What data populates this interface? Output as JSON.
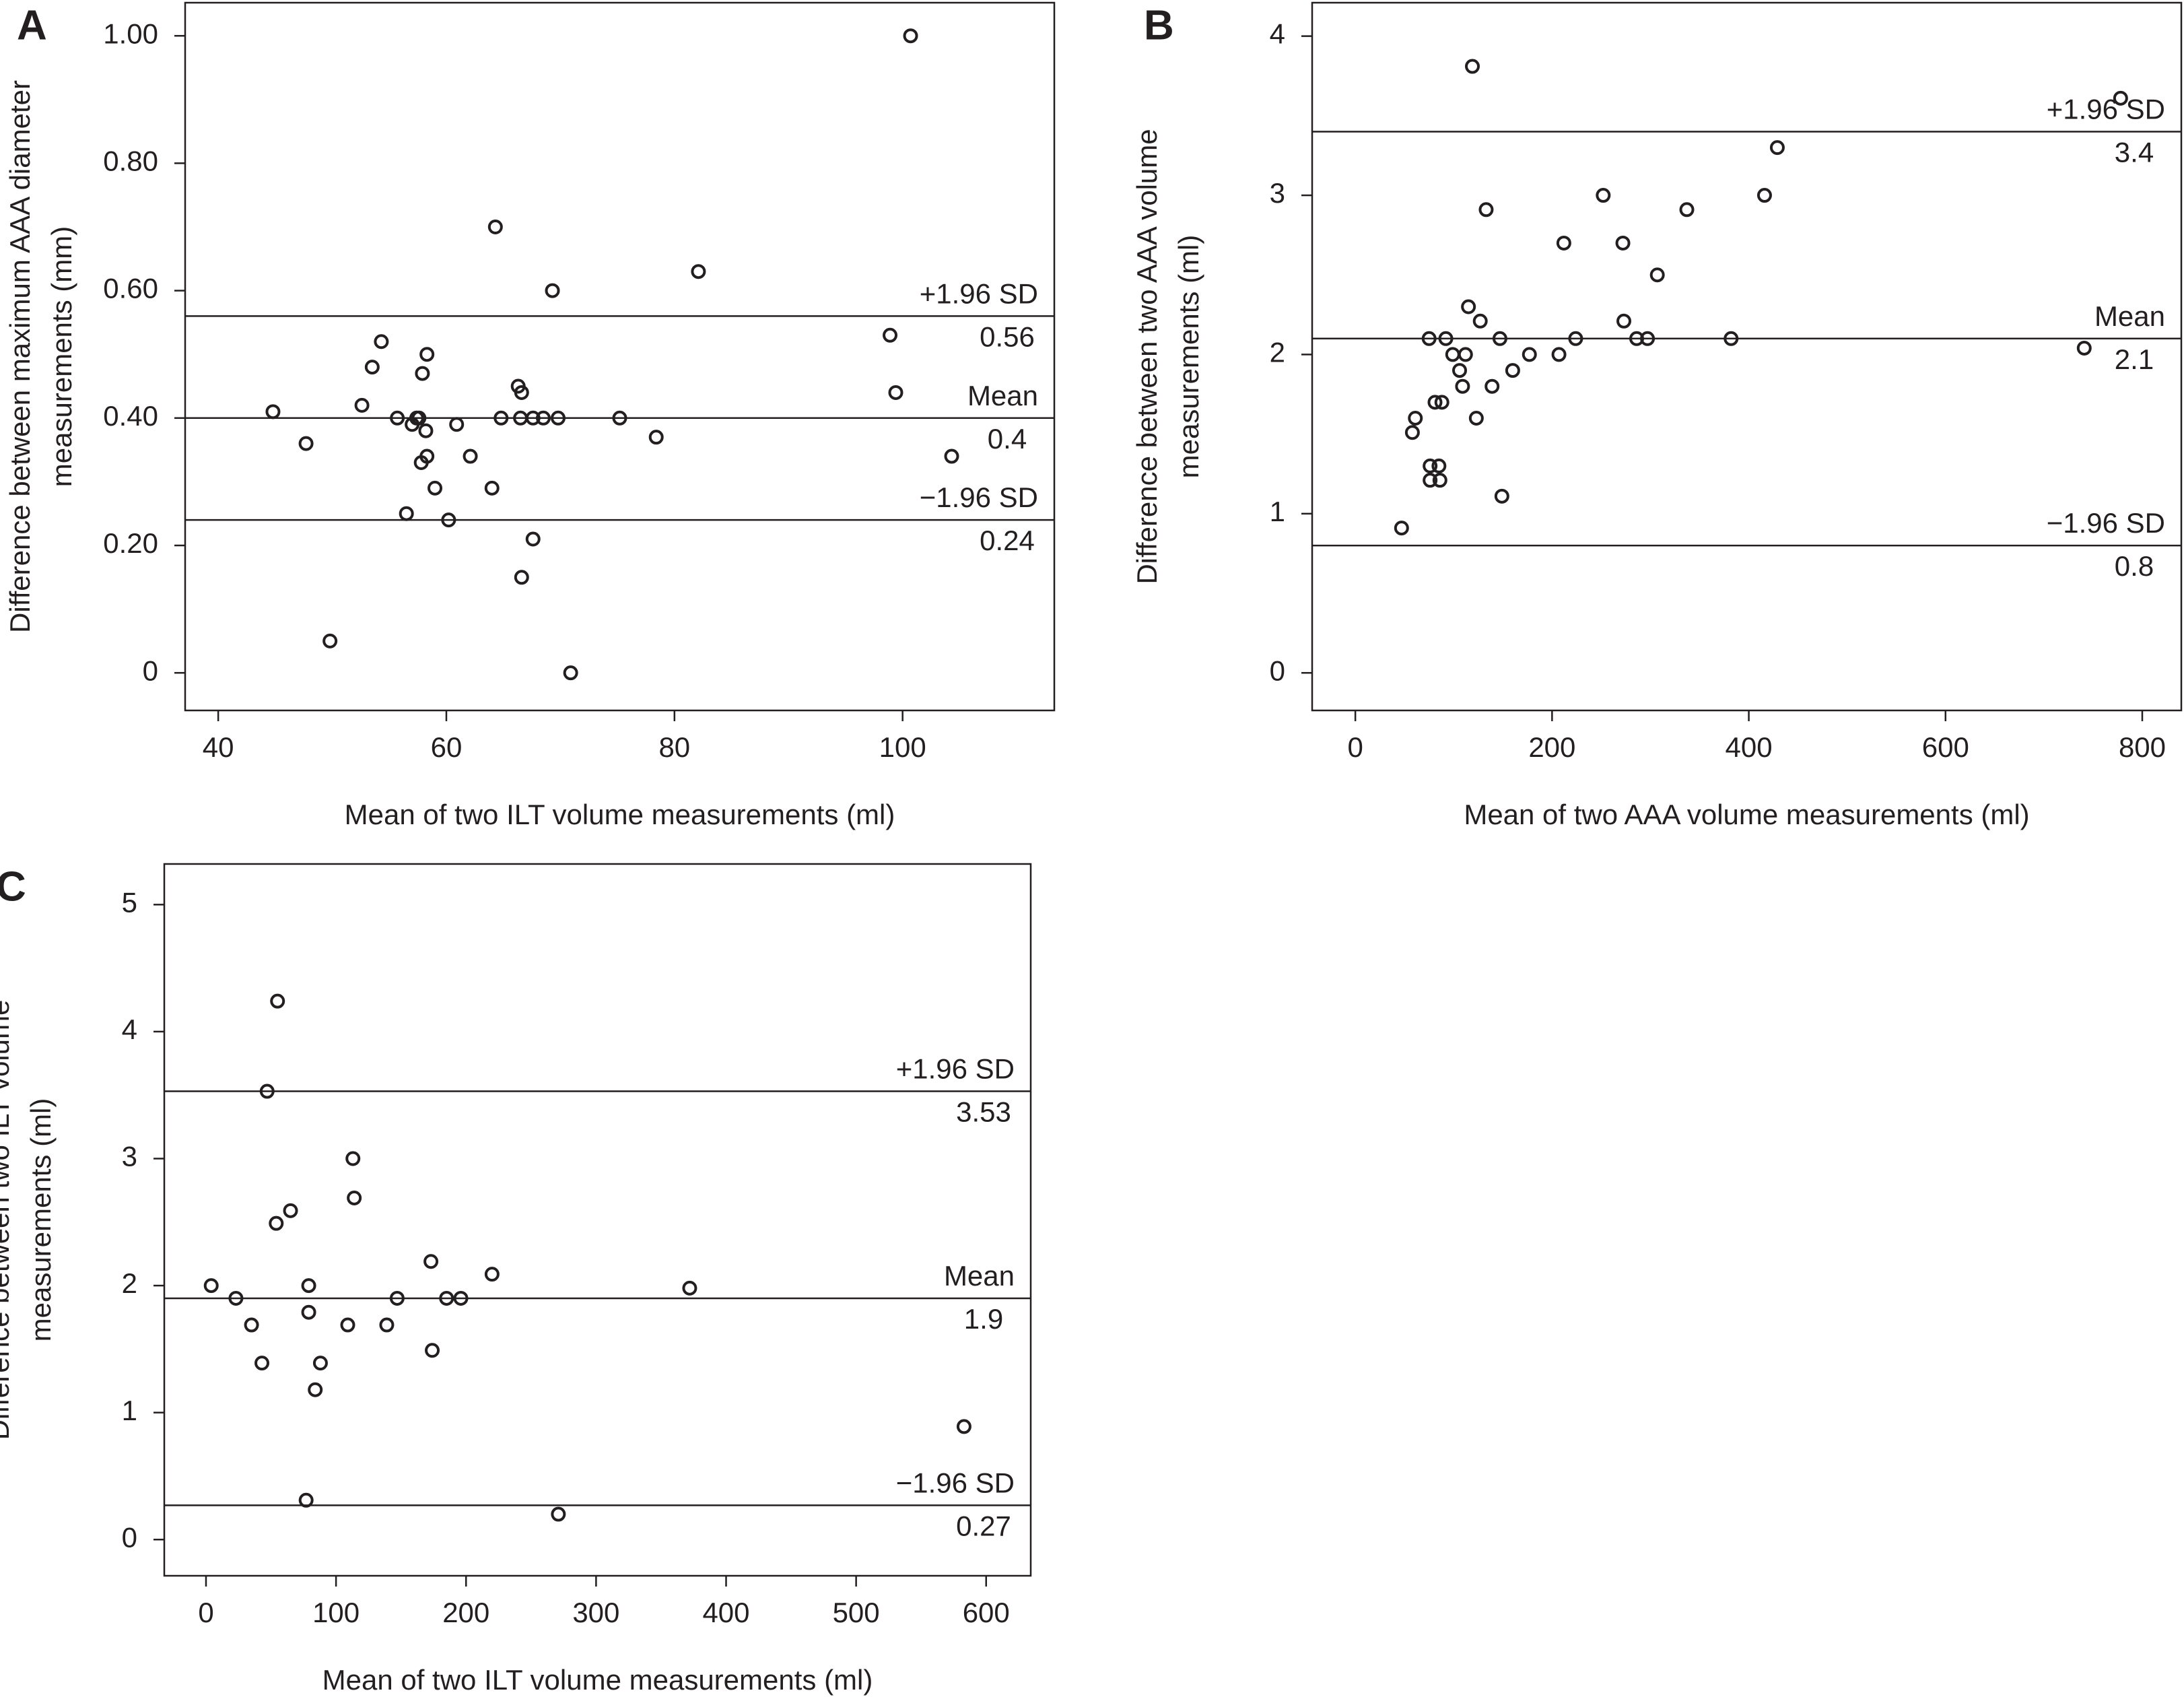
{
  "chart_data": [
    {
      "type": "scatter",
      "panel": "A",
      "xlabel": "Mean of two ILT volume measurements (ml)",
      "ylabel": [
        "Difference between maximum AAA diameter",
        "measurements (mm)"
      ],
      "color": "#231f20",
      "xlim": [
        37.1,
        113.3
      ],
      "ylim": [
        -0.059,
        1.052
      ],
      "xticks": [
        40,
        60,
        80,
        100
      ],
      "yticks": [
        0,
        {
          "value": 0.2,
          "label": "0.20"
        },
        {
          "value": 0.4,
          "label": "0.40"
        },
        {
          "value": 0.6,
          "label": "0.60"
        },
        {
          "value": 0.8,
          "label": "0.80"
        },
        {
          "value": 1.0,
          "label": "1.00"
        }
      ],
      "reference_lines": [
        {
          "name": "+1.96 SD",
          "value": 0.56
        },
        {
          "name": "Mean",
          "value": 0.4
        },
        {
          "name": "−1.96 SD",
          "value": 0.24
        }
      ],
      "x": [
        100.7,
        64.3,
        82.1,
        69.3,
        98.9,
        54.3,
        53.5,
        58.3,
        57.9,
        99.4,
        66.3,
        66.6,
        52.6,
        44.8,
        55.7,
        57.4,
        57.6,
        57.0,
        60.9,
        64.8,
        66.5,
        67.6,
        68.5,
        69.8,
        75.2,
        58.2,
        78.4,
        47.7,
        58.3,
        62.1,
        104.3,
        57.8,
        59.0,
        64.0,
        56.5,
        60.2,
        67.6,
        66.6,
        49.8,
        70.9
      ],
      "values": [
        1.0,
        0.7,
        0.63,
        0.6,
        0.53,
        0.52,
        0.48,
        0.5,
        0.47,
        0.44,
        0.45,
        0.44,
        0.42,
        0.41,
        0.4,
        0.4,
        0.4,
        0.39,
        0.39,
        0.4,
        0.4,
        0.4,
        0.4,
        0.4,
        0.4,
        0.38,
        0.37,
        0.36,
        0.34,
        0.34,
        0.34,
        0.33,
        0.29,
        0.29,
        0.25,
        0.24,
        0.21,
        0.15,
        0.05,
        0.0
      ]
    },
    {
      "type": "scatter",
      "panel": "B",
      "xlabel": "Mean of two AAA volume measurements (ml)",
      "ylabel": [
        "Difference between two AAA volume",
        "measurements (ml)"
      ],
      "color": "#231f20",
      "xlim": [
        -43.9,
        839.7
      ],
      "ylim": [
        -0.236,
        4.21
      ],
      "xticks": [
        0,
        200,
        400,
        600,
        800
      ],
      "yticks": [
        0,
        1,
        2,
        3,
        4
      ],
      "reference_lines": [
        {
          "name": "+1.96 SD",
          "value": 3.4
        },
        {
          "name": "Mean",
          "value": 2.1
        },
        {
          "name": "−1.96 SD",
          "value": 0.8
        }
      ],
      "x": [
        119,
        778,
        429,
        252,
        416,
        133,
        337,
        212,
        272,
        307,
        115,
        127,
        273,
        75,
        92,
        147,
        224,
        286,
        297,
        382,
        99,
        112,
        177,
        207,
        106,
        160,
        109,
        139,
        81,
        88,
        61,
        123,
        58,
        76,
        85,
        76,
        86,
        149,
        47,
        741
      ],
      "values": [
        3.81,
        3.61,
        3.3,
        3.0,
        3.0,
        2.91,
        2.91,
        2.7,
        2.7,
        2.5,
        2.3,
        2.21,
        2.21,
        2.1,
        2.1,
        2.1,
        2.1,
        2.1,
        2.1,
        2.1,
        2.0,
        2.0,
        2.0,
        2.0,
        1.9,
        1.9,
        1.8,
        1.8,
        1.7,
        1.7,
        1.6,
        1.6,
        1.51,
        1.3,
        1.3,
        1.21,
        1.21,
        1.11,
        0.91,
        2.04
      ]
    },
    {
      "type": "scatter",
      "panel": "C",
      "xlabel": "Mean of two ILT volume measurements (ml)",
      "ylabel": [
        "Difference between two ILT volume",
        "measurements (ml)"
      ],
      "color": "#231f20",
      "xlim": [
        -32.1,
        634.3
      ],
      "ylim": [
        -0.285,
        5.32
      ],
      "xticks": [
        0,
        100,
        200,
        300,
        400,
        500,
        600
      ],
      "yticks": [
        0,
        1,
        2,
        3,
        4,
        5
      ],
      "reference_lines": [
        {
          "name": "+1.96 SD",
          "value": 3.53
        },
        {
          "name": "Mean",
          "value": 1.9
        },
        {
          "name": "−1.96 SD",
          "value": 0.27
        }
      ],
      "x": [
        55,
        47,
        113,
        114,
        65,
        54,
        173,
        220,
        372,
        4,
        79,
        23,
        147,
        185,
        196,
        79,
        35,
        109,
        139,
        174,
        43,
        88,
        84,
        583,
        77,
        271
      ],
      "values": [
        4.24,
        3.53,
        3.0,
        2.69,
        2.59,
        2.49,
        2.19,
        2.09,
        1.98,
        2.0,
        2.0,
        1.9,
        1.9,
        1.9,
        1.9,
        1.79,
        1.69,
        1.69,
        1.69,
        1.49,
        1.39,
        1.39,
        1.18,
        0.89,
        0.31,
        0.2
      ]
    }
  ]
}
